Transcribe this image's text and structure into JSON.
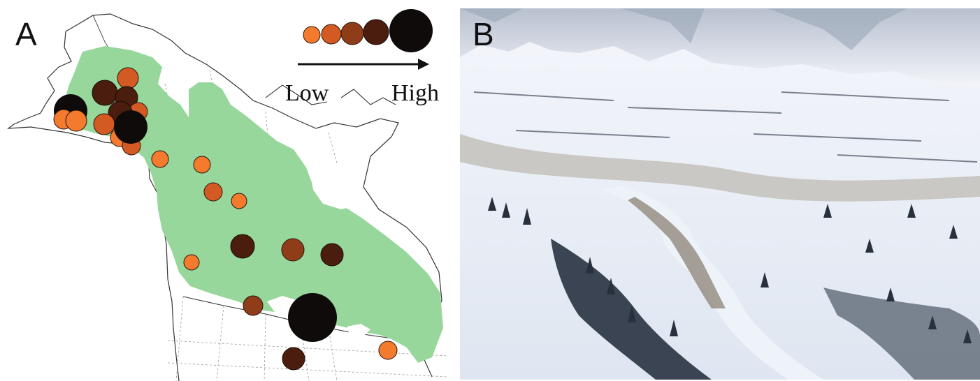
{
  "panel_a": {
    "letter": "A",
    "legend": {
      "low_label": "Low",
      "high_label": "High",
      "scale_colors": [
        "#f47a2e",
        "#d45a23",
        "#8f3d18",
        "#4a1d0e",
        "#0e0b0a"
      ]
    },
    "colors": {
      "range": "#97d79c",
      "border": "#222222",
      "inner_border": "#9a9a9a",
      "low": "#f47a2e",
      "mid_low": "#d45a23",
      "mid": "#8f3d18",
      "mid_high": "#4a1d0e",
      "high": "#0e0b0a"
    }
  },
  "panel_b": {
    "letter": "B"
  }
}
